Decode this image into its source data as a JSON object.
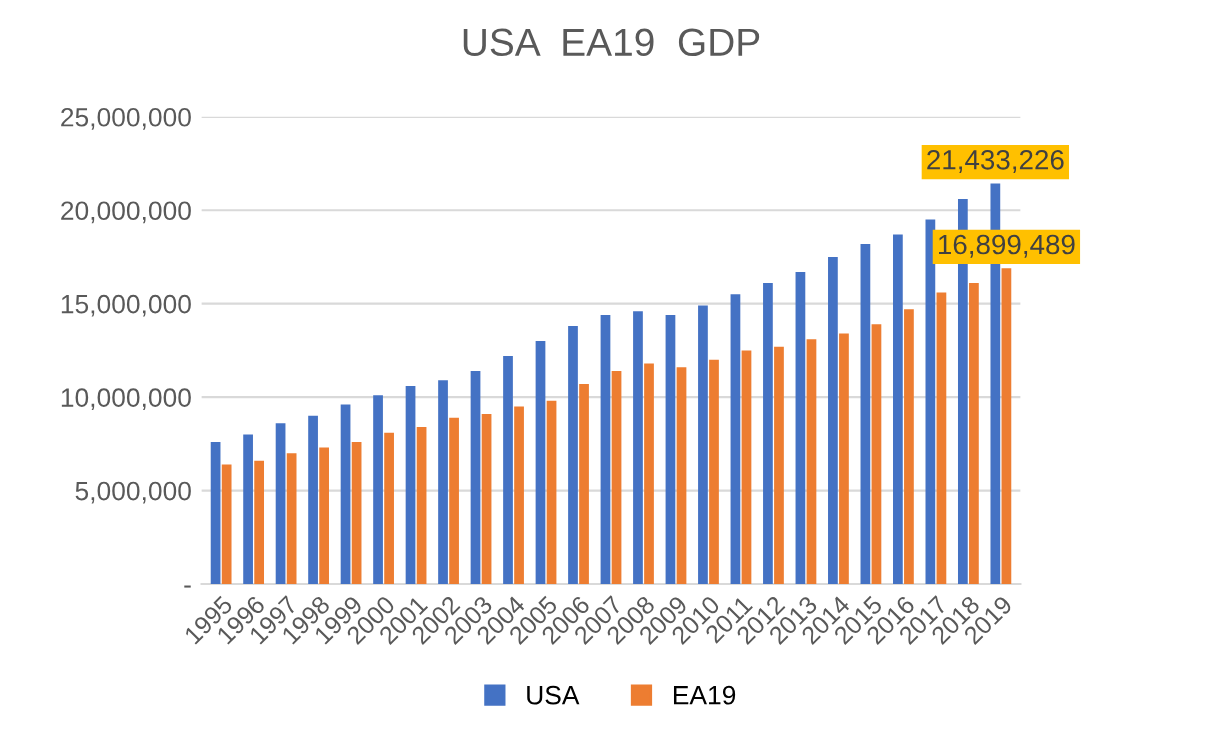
{
  "chart_data": {
    "type": "bar",
    "title": "USA  EA19  GDP",
    "categories": [
      "1995",
      "1996",
      "1997",
      "1998",
      "1999",
      "2000",
      "2001",
      "2002",
      "2003",
      "2004",
      "2005",
      "2006",
      "2007",
      "2008",
      "2009",
      "2010",
      "2011",
      "2012",
      "2013",
      "2014",
      "2015",
      "2016",
      "2017",
      "2018",
      "2019"
    ],
    "series": [
      {
        "name": "USA",
        "color": "#4472c4",
        "values": [
          7600000,
          8000000,
          8600000,
          9000000,
          9600000,
          10100000,
          10600000,
          10900000,
          11400000,
          12200000,
          13000000,
          13800000,
          14400000,
          14600000,
          14400000,
          14900000,
          15500000,
          16100000,
          16700000,
          17500000,
          18200000,
          18700000,
          19500000,
          20600000,
          21433226
        ],
        "value_labels": [
          null,
          null,
          null,
          null,
          null,
          null,
          null,
          null,
          null,
          null,
          null,
          null,
          null,
          null,
          null,
          null,
          null,
          null,
          null,
          null,
          null,
          null,
          null,
          null,
          "21,433,226"
        ]
      },
      {
        "name": "EA19",
        "color": "#ed7d31",
        "values": [
          6400000,
          6600000,
          7000000,
          7300000,
          7600000,
          8100000,
          8400000,
          8900000,
          9100000,
          9500000,
          9800000,
          10700000,
          11400000,
          11800000,
          11600000,
          12000000,
          12500000,
          12700000,
          13100000,
          13400000,
          13900000,
          14700000,
          15600000,
          16100000,
          16899489
        ],
        "value_labels": [
          null,
          null,
          null,
          null,
          null,
          null,
          null,
          null,
          null,
          null,
          null,
          null,
          null,
          null,
          null,
          null,
          null,
          null,
          null,
          null,
          null,
          null,
          null,
          null,
          "16,899,489"
        ]
      }
    ],
    "ylim": [
      0,
      25000000
    ],
    "yticks": [
      {
        "value": 0,
        "label": "-"
      },
      {
        "value": 5000000,
        "label": "5,000,000"
      },
      {
        "value": 10000000,
        "label": "10,000,000"
      },
      {
        "value": 15000000,
        "label": "15,000,000"
      },
      {
        "value": 20000000,
        "label": "20,000,000"
      },
      {
        "value": 25000000,
        "label": "25,000,000"
      }
    ],
    "grid": "y",
    "legend": "bottom"
  }
}
